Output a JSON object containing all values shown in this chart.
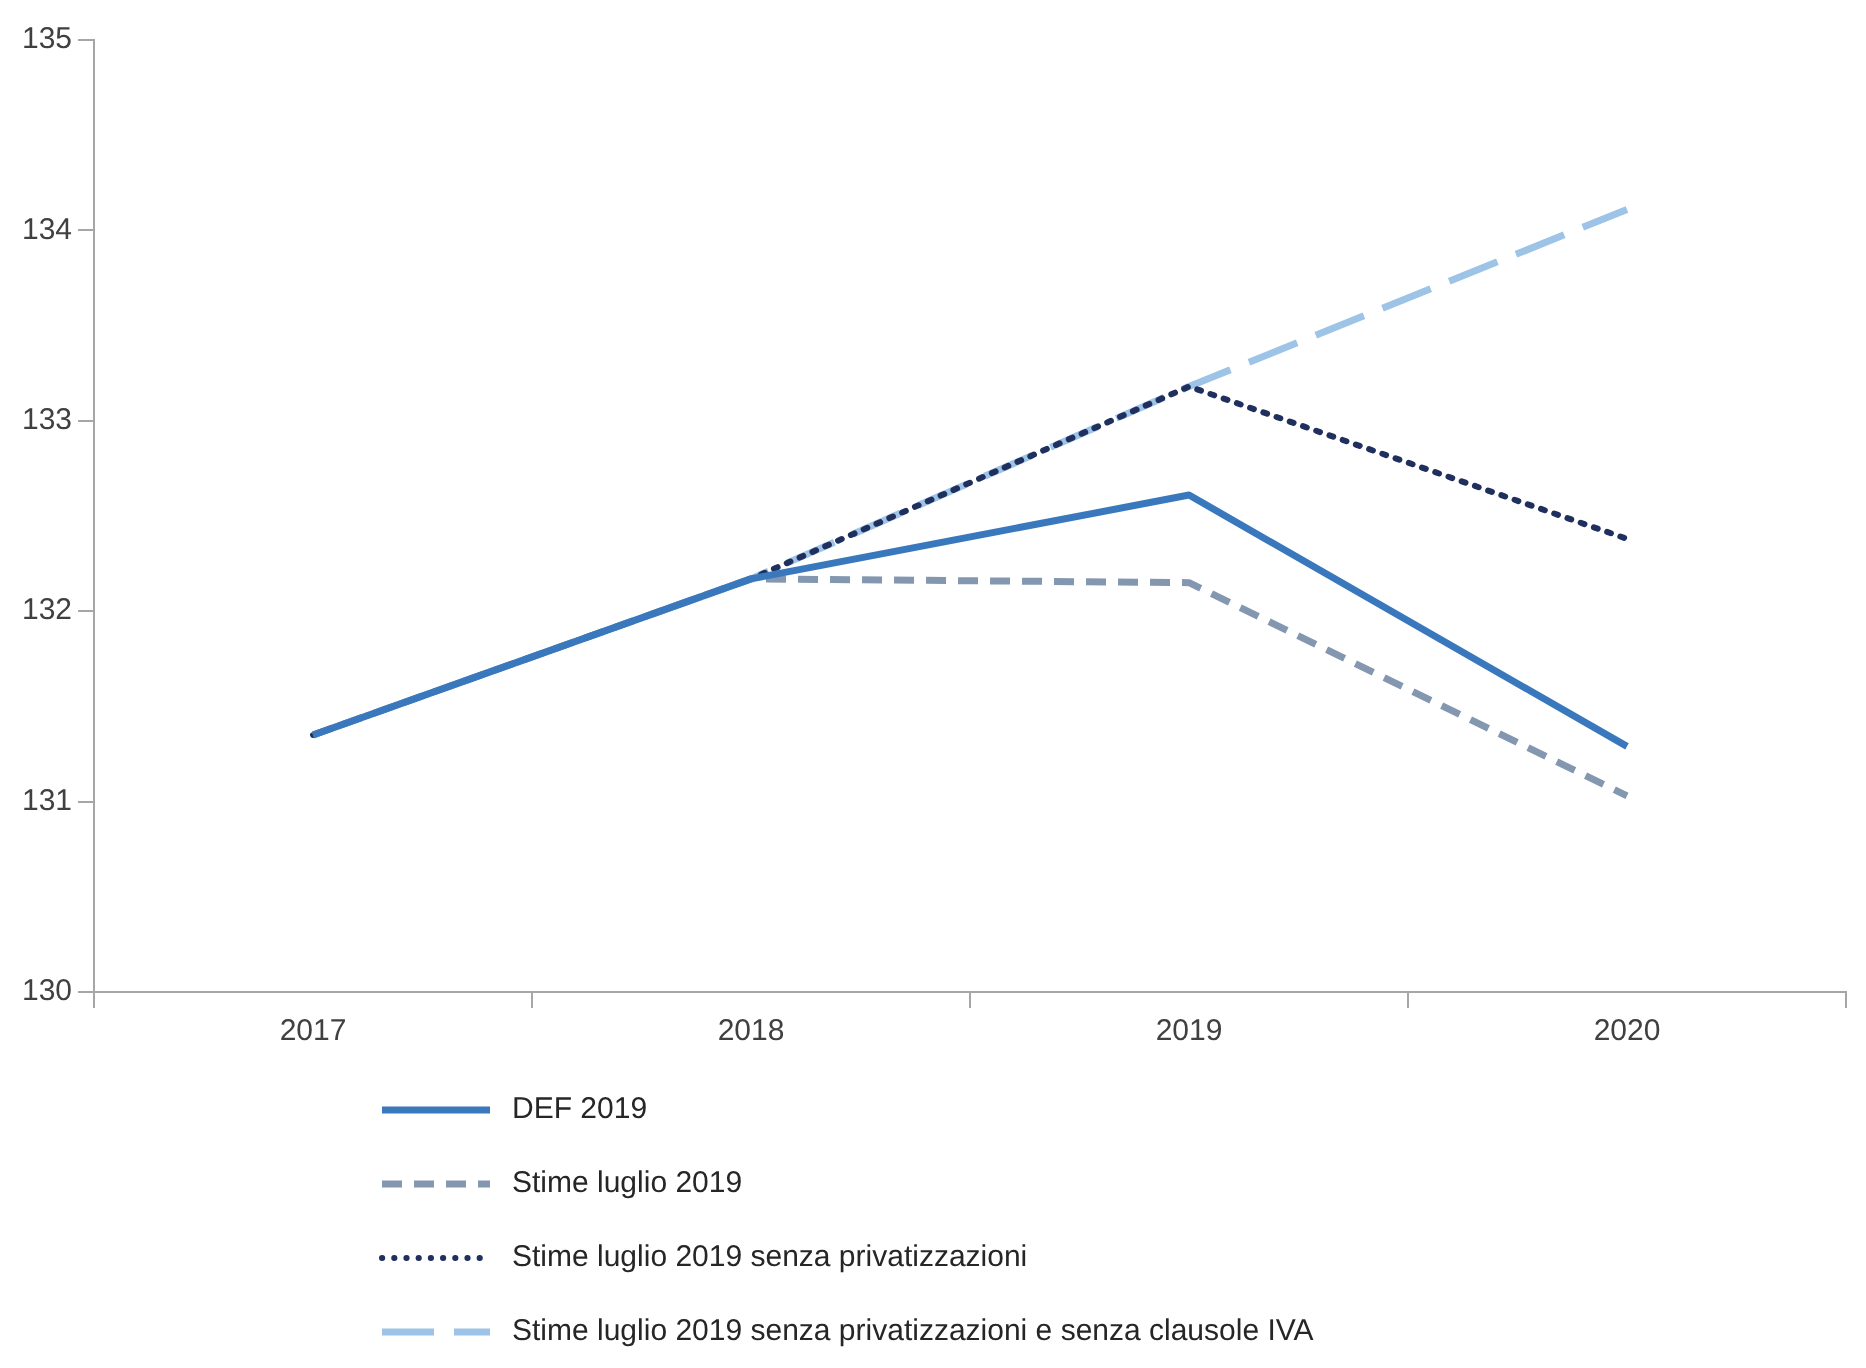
{
  "chart_data": {
    "type": "line",
    "categories": [
      "2017",
      "2018",
      "2019",
      "2020"
    ],
    "series": [
      {
        "name": "DEF 2019",
        "color": "#3a78bd",
        "line_style": "solid",
        "values": [
          131.35,
          132.17,
          132.61,
          131.29
        ]
      },
      {
        "name": "Stime luglio 2019",
        "color": "#8497b0",
        "line_style": "dashed",
        "values": [
          131.35,
          132.17,
          132.15,
          131.03
        ]
      },
      {
        "name": "Stime luglio 2019 senza privatizzazioni",
        "color": "#1f2f5e",
        "line_style": "dotted",
        "values": [
          131.35,
          132.17,
          133.18,
          132.38
        ]
      },
      {
        "name": "Stime luglio 2019 senza privatizzazioni e senza clausole IVA",
        "color": "#9dc3e6",
        "line_style": "dashed",
        "values": [
          131.35,
          132.17,
          133.18,
          134.11
        ]
      }
    ],
    "ylim": [
      130,
      135
    ],
    "yticks": [
      130,
      131,
      132,
      133,
      134,
      135
    ],
    "grid": false,
    "legend": "bottom",
    "marker": "none"
  }
}
